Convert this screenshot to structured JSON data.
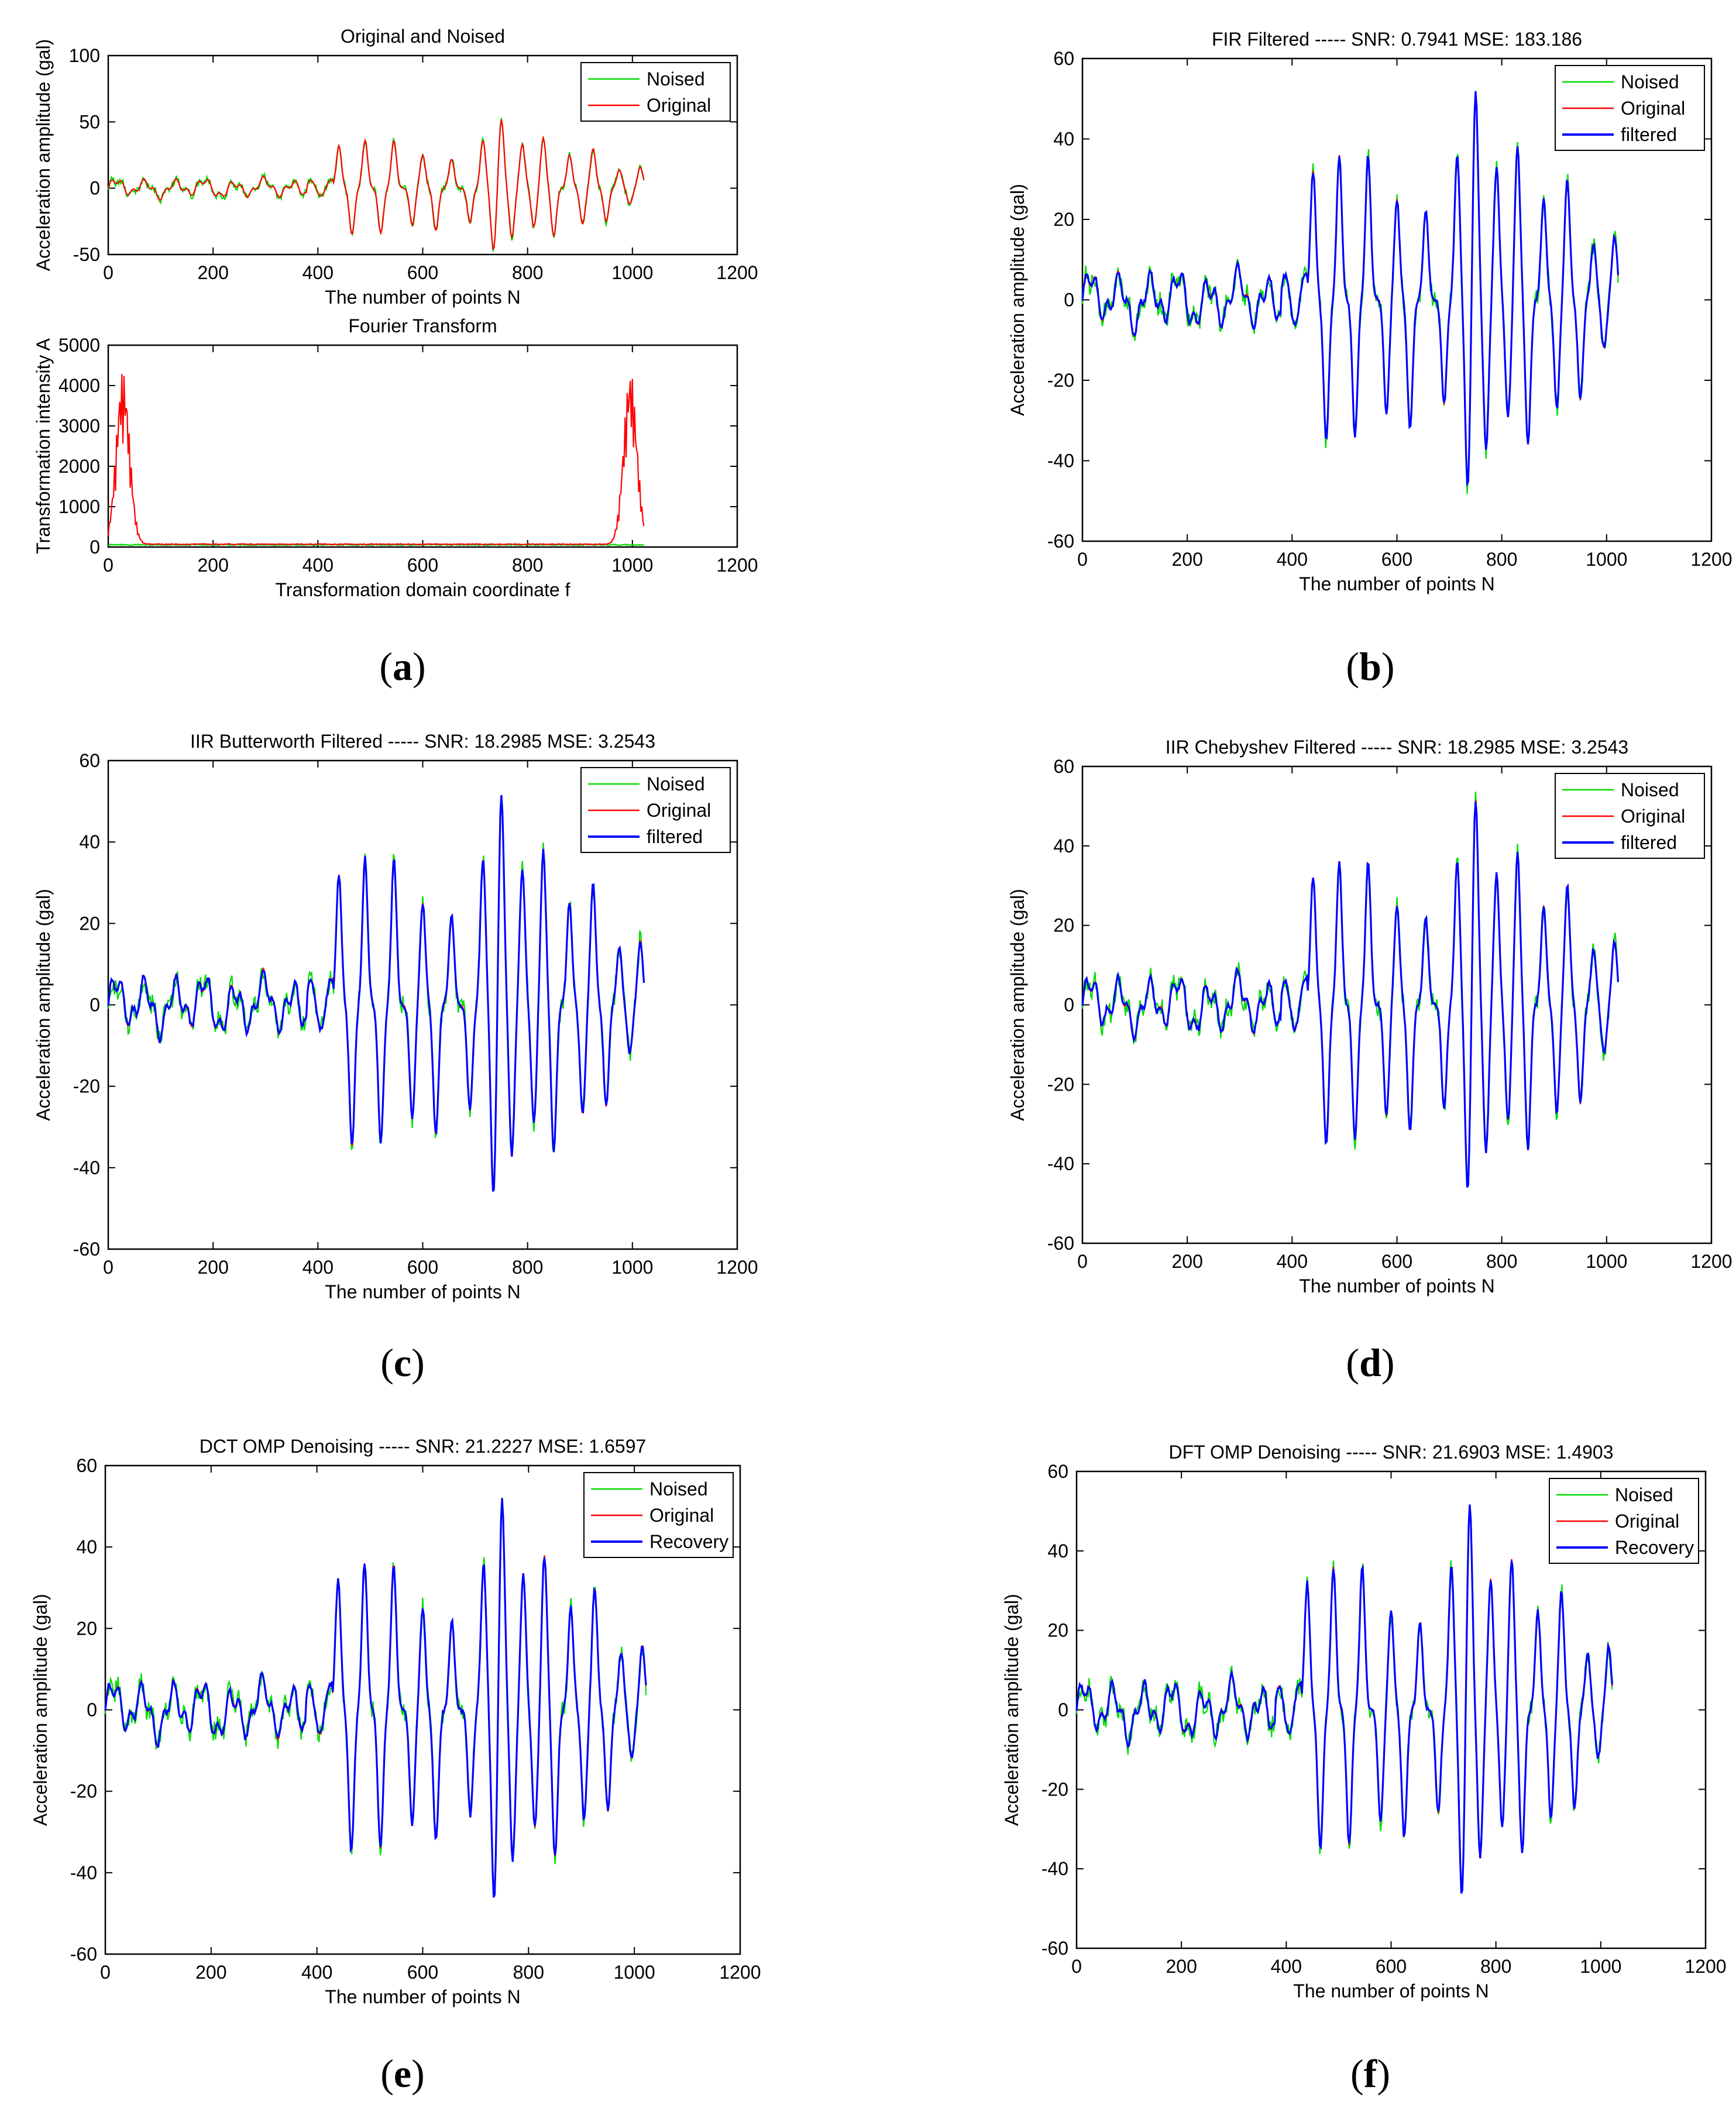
{
  "chart_data": [
    {
      "id": "a1",
      "type": "line",
      "title": "Original and Noised",
      "xlabel": "The number of points N",
      "ylabel": "Acceleration amplitude (gal)",
      "xlim": [
        0,
        1200
      ],
      "ylim": [
        -50,
        100
      ],
      "xticks": [
        0,
        200,
        400,
        600,
        800,
        1000,
        1200
      ],
      "yticks": [
        -50,
        0,
        50,
        100
      ],
      "legend": "top-right",
      "series": [
        {
          "name": "Noised",
          "color": "#00dd00"
        },
        {
          "name": "Original",
          "color": "#ff0000"
        }
      ]
    },
    {
      "id": "a2",
      "type": "line",
      "title": "Fourier Transform",
      "xlabel": "Transformation domain coordinate f",
      "ylabel": "Transformation intensity A",
      "xlim": [
        0,
        1200
      ],
      "ylim": [
        0,
        5000
      ],
      "xticks": [
        0,
        200,
        400,
        600,
        800,
        1000,
        1200
      ],
      "yticks": [
        0,
        1000,
        2000,
        3000,
        4000,
        5000
      ],
      "legend": "none",
      "series": [
        {
          "color": "#00dd00"
        },
        {
          "color": "#ff0000"
        }
      ]
    },
    {
      "id": "b",
      "type": "line",
      "title": "FIR Filtered ----- SNR: 0.7941 MSE: 183.186",
      "xlabel": "The number of points N",
      "ylabel": "Acceleration amplitude (gal)",
      "xlim": [
        0,
        1200
      ],
      "ylim": [
        -60,
        60
      ],
      "xticks": [
        0,
        200,
        400,
        600,
        800,
        1000,
        1200
      ],
      "yticks": [
        -60,
        -40,
        -20,
        0,
        20,
        40,
        60
      ],
      "legend": "top-right",
      "series": [
        {
          "name": "Noised",
          "color": "#00dd00"
        },
        {
          "name": "Original",
          "color": "#ff0000"
        },
        {
          "name": "filtered",
          "color": "#0000ff"
        }
      ]
    },
    {
      "id": "c",
      "type": "line",
      "title": "IIR Butterworth Filtered ----- SNR: 18.2985 MSE: 3.2543",
      "xlabel": "The number of points N",
      "ylabel": "Acceleration amplitude (gal)",
      "xlim": [
        0,
        1200
      ],
      "ylim": [
        -60,
        60
      ],
      "xticks": [
        0,
        200,
        400,
        600,
        800,
        1000,
        1200
      ],
      "yticks": [
        -60,
        -40,
        -20,
        0,
        20,
        40,
        60
      ],
      "legend": "top-right",
      "series": [
        {
          "name": "Noised",
          "color": "#00dd00"
        },
        {
          "name": "Original",
          "color": "#ff0000"
        },
        {
          "name": "filtered",
          "color": "#0000ff"
        }
      ]
    },
    {
      "id": "d",
      "type": "line",
      "title": "IIR Chebyshev Filtered ----- SNR: 18.2985 MSE: 3.2543",
      "xlabel": "The number of points N",
      "ylabel": "Acceleration amplitude (gal)",
      "xlim": [
        0,
        1200
      ],
      "ylim": [
        -60,
        60
      ],
      "xticks": [
        0,
        200,
        400,
        600,
        800,
        1000,
        1200
      ],
      "yticks": [
        -60,
        -40,
        -20,
        0,
        20,
        40,
        60
      ],
      "legend": "top-right",
      "series": [
        {
          "name": "Noised",
          "color": "#00dd00"
        },
        {
          "name": "Original",
          "color": "#ff0000"
        },
        {
          "name": "filtered",
          "color": "#0000ff"
        }
      ]
    },
    {
      "id": "e",
      "type": "line",
      "title": "DCT OMP Denoising ----- SNR: 21.2227 MSE: 1.6597",
      "xlabel": "The number of points N",
      "ylabel": "Acceleration amplitude (gal)",
      "xlim": [
        0,
        1200
      ],
      "ylim": [
        -60,
        60
      ],
      "xticks": [
        0,
        200,
        400,
        600,
        800,
        1000,
        1200
      ],
      "yticks": [
        -60,
        -40,
        -20,
        0,
        20,
        40,
        60
      ],
      "legend": "top-right",
      "series": [
        {
          "name": "Noised",
          "color": "#00dd00"
        },
        {
          "name": "Original",
          "color": "#ff0000"
        },
        {
          "name": "Recovery",
          "color": "#0000ff"
        }
      ]
    },
    {
      "id": "f",
      "type": "line",
      "title": "DFT OMP Denoising ----- SNR: 21.6903 MSE: 1.4903",
      "xlabel": "The number of points N",
      "ylabel": "Acceleration amplitude (gal)",
      "xlim": [
        0,
        1200
      ],
      "ylim": [
        -60,
        60
      ],
      "xticks": [
        0,
        200,
        400,
        600,
        800,
        1000,
        1200
      ],
      "yticks": [
        -60,
        -40,
        -20,
        0,
        20,
        40,
        60
      ],
      "legend": "top-right",
      "series": [
        {
          "name": "Noised",
          "color": "#00dd00"
        },
        {
          "name": "Original",
          "color": "#ff0000"
        },
        {
          "name": "Recovery",
          "color": "#0000ff"
        }
      ]
    }
  ],
  "captions": {
    "a": "a",
    "b": "b",
    "c": "c",
    "d": "d",
    "e": "e",
    "f": "f"
  }
}
